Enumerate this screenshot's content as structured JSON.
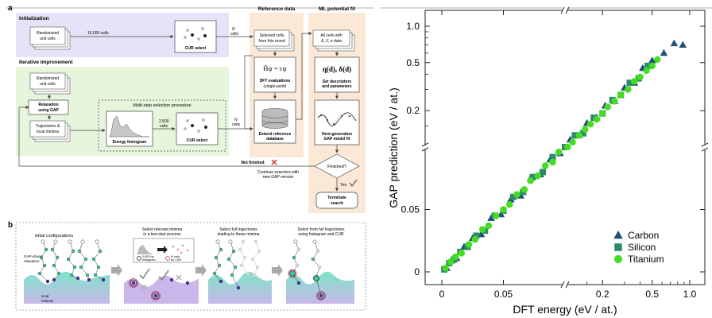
{
  "panel_a": {
    "label": "a",
    "sections": {
      "initialization": "Initialization",
      "iterative": "Iterative improvement",
      "reference": "Reference data",
      "mlfit": "ML potential fit"
    },
    "boxes": {
      "random_cells_1": [
        "Randomized",
        "unit cells"
      ],
      "random_cells_2": [
        "Randomized",
        "unit cells"
      ],
      "cur_select_1": "CUR select",
      "relaxation": [
        "Relaxation",
        "using GAP"
      ],
      "trajectories": [
        "Trajectories &",
        "local minima"
      ],
      "multistep": "Multi-step selection procedure",
      "energy_hist": "Energy histogram",
      "cur_select_2": "CUR select",
      "selected_cells": [
        "Selected cells",
        "from this round"
      ],
      "dft_eq": "Ĥψ = εψ",
      "dft_eval": [
        "DFT evaluations",
        "(single-point)"
      ],
      "extend_db": [
        "Extend reference",
        "database"
      ],
      "all_cells": [
        "All cells with",
        "E, F, σ data"
      ],
      "descriptors_eq": "q(d), δ(d)",
      "descriptors": [
        "Set descriptors",
        "and parameters"
      ],
      "next_gen": [
        "Next-generation",
        "GAP model fit"
      ],
      "finished": "Finished?",
      "terminate": [
        "Terminate",
        "search"
      ]
    },
    "arrow_labels": {
      "cells_10000": "10,000 cells",
      "n_cells_1": [
        "N",
        "cells"
      ],
      "cells_2500": [
        "2,500",
        "cells"
      ],
      "n_cells_2": [
        "N",
        "cells"
      ],
      "not_finished": "Not finished:",
      "continue": [
        "Continue searches with",
        "new GAP version"
      ],
      "yes": "Yes"
    }
  },
  "panel_b": {
    "label": "b",
    "captions": {
      "s1": "",
      "s2": [
        "Select relevant minima",
        "in a two-step process"
      ],
      "s3": [
        "Select full trajectories",
        "leading to these minima"
      ],
      "s4": [
        "Select from full trajectories",
        "using histogram and CUR"
      ]
    },
    "labels": {
      "initial": "initial configurations",
      "gap_relax": [
        "GAP-driven",
        "relaxation"
      ],
      "local_minima": [
        "local",
        "minima"
      ],
      "by_hist": [
        "2,500 by",
        "histogram"
      ],
      "by_cur": [
        "N cells",
        "by CUR"
      ]
    }
  },
  "chart_data": {
    "type": "scatter",
    "xlabel": "DFT energy (eV / at.)",
    "ylabel": "GAP prediction (eV / at.)",
    "x_ticks": [
      "0",
      "0.05",
      "0.2",
      "0.5",
      "1.0"
    ],
    "y_ticks": [
      "0",
      "0.05",
      "0.2",
      "0.5",
      "1.0"
    ],
    "axis_scale": "broken: linear 0–0.1, logarithmic 0.1–1.0",
    "legend_position": "bottom-right",
    "series": [
      {
        "name": "Carbon",
        "marker": "triangle",
        "color": "#1f4e79",
        "x": [
          0.004,
          0.008,
          0.012,
          0.018,
          0.025,
          0.032,
          0.04,
          0.048,
          0.056,
          0.064,
          0.072,
          0.08,
          0.088,
          0.096,
          0.11,
          0.13,
          0.15,
          0.18,
          0.21,
          0.25,
          0.3,
          0.36,
          0.42,
          0.5,
          0.62,
          0.75,
          0.88
        ],
        "y": [
          0.003,
          0.009,
          0.011,
          0.02,
          0.027,
          0.03,
          0.043,
          0.046,
          0.058,
          0.061,
          0.075,
          0.078,
          0.09,
          0.095,
          0.115,
          0.125,
          0.158,
          0.175,
          0.22,
          0.24,
          0.31,
          0.34,
          0.45,
          0.52,
          0.6,
          0.72,
          0.7
        ]
      },
      {
        "name": "Silicon",
        "marker": "square",
        "color": "#2e8b6a",
        "x": [
          0.002,
          0.006,
          0.01,
          0.015,
          0.021,
          0.028,
          0.035,
          0.043,
          0.05,
          0.058,
          0.066,
          0.074,
          0.082,
          0.09,
          0.1,
          0.12,
          0.14,
          0.17,
          0.2,
          0.24,
          0.28,
          0.33,
          0.39,
          0.46
        ],
        "y": [
          0.002,
          0.007,
          0.01,
          0.016,
          0.02,
          0.029,
          0.033,
          0.045,
          0.049,
          0.06,
          0.064,
          0.076,
          0.08,
          0.092,
          0.1,
          0.125,
          0.13,
          0.175,
          0.19,
          0.245,
          0.27,
          0.34,
          0.37,
          0.47
        ]
      },
      {
        "name": "Titanium",
        "marker": "circle",
        "color": "#44dd22",
        "x": [
          0.003,
          0.007,
          0.011,
          0.016,
          0.022,
          0.027,
          0.033,
          0.038,
          0.044,
          0.05,
          0.055,
          0.061,
          0.067,
          0.072,
          0.078,
          0.084,
          0.09,
          0.095,
          0.105,
          0.115,
          0.13,
          0.145,
          0.16,
          0.18,
          0.2,
          0.22,
          0.25,
          0.28,
          0.32,
          0.36,
          0.4,
          0.45,
          0.5,
          0.55
        ],
        "y": [
          0.003,
          0.008,
          0.012,
          0.015,
          0.022,
          0.026,
          0.034,
          0.037,
          0.045,
          0.05,
          0.054,
          0.062,
          0.066,
          0.073,
          0.077,
          0.085,
          0.088,
          0.096,
          0.1,
          0.11,
          0.125,
          0.14,
          0.155,
          0.17,
          0.19,
          0.215,
          0.24,
          0.27,
          0.3,
          0.35,
          0.38,
          0.43,
          0.47,
          0.53
        ]
      }
    ]
  }
}
